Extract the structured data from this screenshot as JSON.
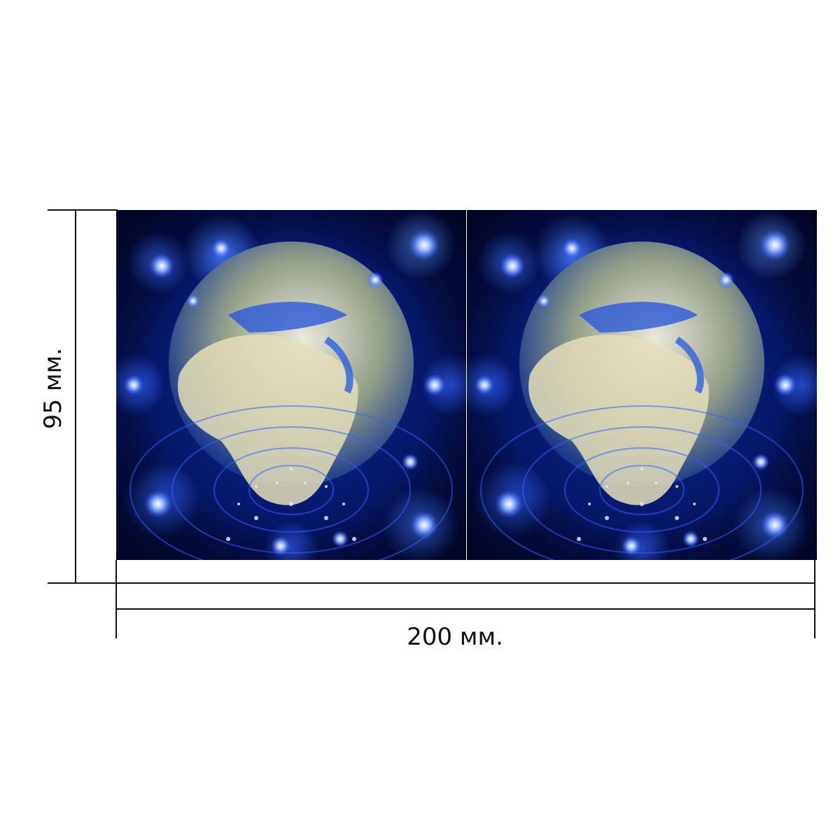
{
  "dimensions": {
    "width_label": "200 мм.",
    "height_label": "95 мм."
  },
  "artwork": {
    "description_icon": "earth-globe-in-blue-light-sphere-pattern",
    "panels": 2,
    "colors": {
      "background": "#06135a",
      "glow": "#3f78ff",
      "land": "#e8e4c8",
      "sea": "#1d49c9"
    }
  }
}
